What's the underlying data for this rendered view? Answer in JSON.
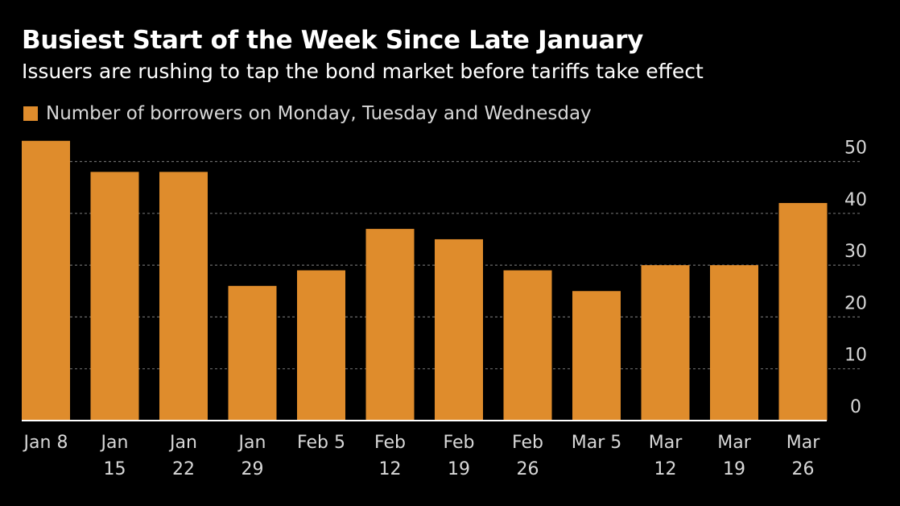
{
  "colors": {
    "background": "#000000",
    "bar": "#df8c2c",
    "grid": "#6a6a6a",
    "axis": "#ffffff"
  },
  "chart_data": {
    "type": "bar",
    "title": "Busiest Start of the Week Since Late January",
    "subtitle": "Issuers are rushing to tap the bond market before tariffs take effect",
    "categories": [
      [
        "Jan 8"
      ],
      [
        "Jan",
        "15"
      ],
      [
        "Jan",
        "22"
      ],
      [
        "Jan",
        "29"
      ],
      [
        "Feb 5"
      ],
      [
        "Feb",
        "12"
      ],
      [
        "Feb",
        "19"
      ],
      [
        "Feb",
        "26"
      ],
      [
        "Mar 5"
      ],
      [
        "Mar",
        "12"
      ],
      [
        "Mar",
        "19"
      ],
      [
        "Mar",
        "26"
      ]
    ],
    "series": [
      {
        "name": "Number of borrowers on Monday, Tuesday and Wednesday",
        "values": [
          54,
          48,
          48,
          26,
          29,
          37,
          35,
          29,
          25,
          30,
          30,
          42
        ]
      }
    ],
    "yticks": [
      0,
      10,
      20,
      30,
      40,
      50
    ],
    "ylim": [
      0,
      54
    ],
    "grid": true,
    "y_axis_position": "right",
    "legend_position": "top-left"
  }
}
